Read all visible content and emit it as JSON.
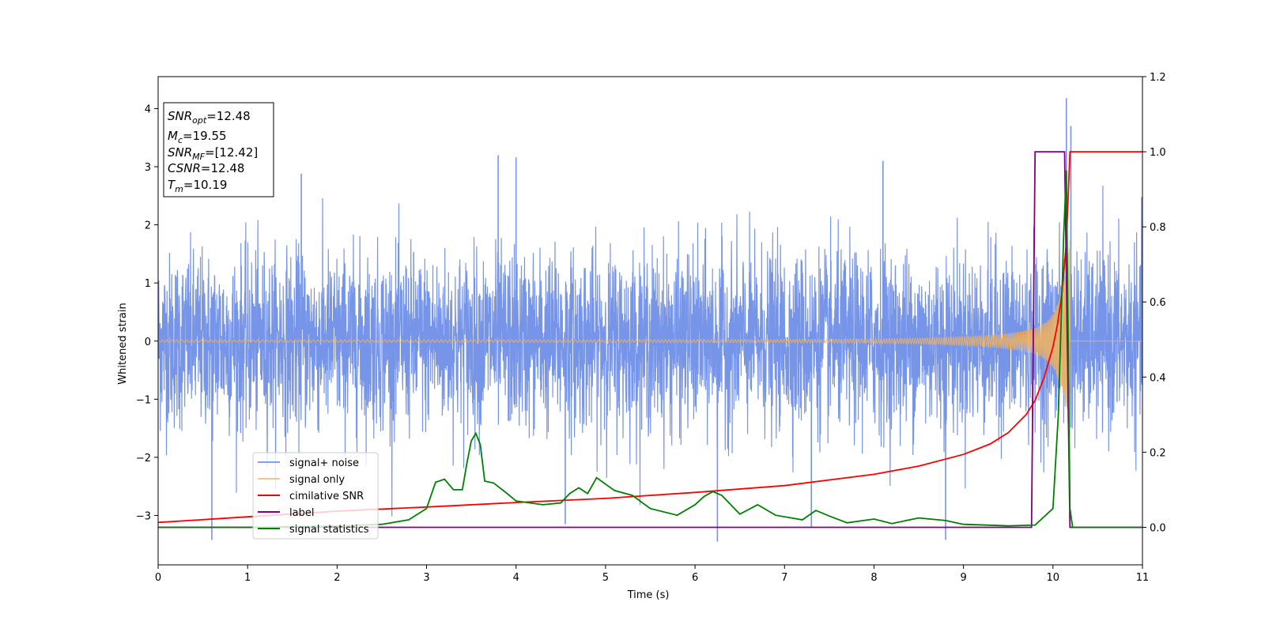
{
  "chart_data": {
    "type": "line",
    "xlabel": "Time (s)",
    "ylabel_left": "Whitened strain",
    "ylabel_right": "",
    "xlim": [
      0,
      11
    ],
    "ylim_left": [
      -3.85,
      4.55
    ],
    "ylim_right": [
      -0.1,
      1.2
    ],
    "x_ticks": [
      0,
      1,
      2,
      3,
      4,
      5,
      6,
      7,
      8,
      9,
      10,
      11
    ],
    "y_ticks_left": [
      -3,
      -2,
      -1,
      0,
      1,
      2,
      3,
      4
    ],
    "y_ticks_right": [
      0.0,
      0.2,
      0.4,
      0.6,
      0.8,
      1.0,
      1.2
    ],
    "grid": false,
    "legend_position": "lower-left",
    "info_box": {
      "lines": [
        {
          "base": "SNR",
          "sub": "opt",
          "value": "=12.48"
        },
        {
          "base": "M",
          "sub": "c",
          "value": "=19.55"
        },
        {
          "base": "SNR",
          "sub": "MF",
          "value": "=[12.42]"
        },
        {
          "base": "CSNR",
          "sub": "",
          "value": "=12.48"
        },
        {
          "base": "T",
          "sub": "m",
          "value": "=10.19"
        }
      ]
    },
    "series": [
      {
        "name": "signal+ noise",
        "axis": "left",
        "color": "#7795e8",
        "kind": "noise",
        "sigma": 0.75,
        "envelope_max": 3.2,
        "spikes": [
          {
            "x": 0.6,
            "y": -3.42
          },
          {
            "x": 1.6,
            "y": 2.88
          },
          {
            "x": 3.8,
            "y": 3.2
          },
          {
            "x": 4.0,
            "y": 3.16
          },
          {
            "x": 4.55,
            "y": -3.15
          },
          {
            "x": 6.25,
            "y": -3.45
          },
          {
            "x": 7.3,
            "y": -3.2
          },
          {
            "x": 8.1,
            "y": 3.1
          },
          {
            "x": 8.8,
            "y": -3.42
          },
          {
            "x": 10.15,
            "y": 4.18
          },
          {
            "x": 10.2,
            "y": 3.7
          }
        ]
      },
      {
        "name": "signal only",
        "axis": "left",
        "color": "#f5b35c",
        "kind": "chirp",
        "t_merge": 10.19
      },
      {
        "name": "cimilative SNR",
        "axis": "right",
        "color": "#ff0000",
        "kind": "line",
        "points": [
          [
            0,
            0.013
          ],
          [
            1,
            0.028
          ],
          [
            2,
            0.043
          ],
          [
            3,
            0.054
          ],
          [
            4,
            0.066
          ],
          [
            5,
            0.077
          ],
          [
            6,
            0.093
          ],
          [
            7,
            0.111
          ],
          [
            8,
            0.141
          ],
          [
            8.5,
            0.163
          ],
          [
            9,
            0.194
          ],
          [
            9.3,
            0.222
          ],
          [
            9.5,
            0.252
          ],
          [
            9.7,
            0.3
          ],
          [
            9.8,
            0.338
          ],
          [
            9.9,
            0.398
          ],
          [
            10.0,
            0.48
          ],
          [
            10.05,
            0.54
          ],
          [
            10.1,
            0.62
          ],
          [
            10.15,
            0.76
          ],
          [
            10.19,
            1.0
          ],
          [
            11,
            1.0
          ]
        ]
      },
      {
        "name": "label",
        "axis": "right",
        "color": "#800080",
        "kind": "line",
        "points": [
          [
            0,
            0
          ],
          [
            9.76,
            0
          ],
          [
            9.8,
            1.0
          ],
          [
            10.13,
            1.0
          ],
          [
            10.19,
            0
          ],
          [
            11,
            0
          ]
        ]
      },
      {
        "name": "signal statistics",
        "axis": "right",
        "color": "#008000",
        "kind": "line",
        "points": [
          [
            0,
            0.0
          ],
          [
            1,
            0.0
          ],
          [
            2,
            0.003
          ],
          [
            2.5,
            0.008
          ],
          [
            2.8,
            0.02
          ],
          [
            3.0,
            0.05
          ],
          [
            3.1,
            0.12
          ],
          [
            3.2,
            0.128
          ],
          [
            3.3,
            0.1
          ],
          [
            3.4,
            0.1
          ],
          [
            3.45,
            0.17
          ],
          [
            3.5,
            0.23
          ],
          [
            3.55,
            0.25
          ],
          [
            3.6,
            0.22
          ],
          [
            3.65,
            0.123
          ],
          [
            3.75,
            0.118
          ],
          [
            3.9,
            0.09
          ],
          [
            4.0,
            0.07
          ],
          [
            4.3,
            0.06
          ],
          [
            4.5,
            0.065
          ],
          [
            4.6,
            0.09
          ],
          [
            4.7,
            0.105
          ],
          [
            4.8,
            0.09
          ],
          [
            4.9,
            0.132
          ],
          [
            5.0,
            0.115
          ],
          [
            5.1,
            0.098
          ],
          [
            5.3,
            0.085
          ],
          [
            5.5,
            0.05
          ],
          [
            5.8,
            0.032
          ],
          [
            6.0,
            0.06
          ],
          [
            6.1,
            0.082
          ],
          [
            6.2,
            0.095
          ],
          [
            6.3,
            0.085
          ],
          [
            6.5,
            0.035
          ],
          [
            6.7,
            0.06
          ],
          [
            6.9,
            0.032
          ],
          [
            7.2,
            0.02
          ],
          [
            7.35,
            0.045
          ],
          [
            7.5,
            0.03
          ],
          [
            7.7,
            0.012
          ],
          [
            8.0,
            0.022
          ],
          [
            8.2,
            0.01
          ],
          [
            8.5,
            0.025
          ],
          [
            8.8,
            0.018
          ],
          [
            9.0,
            0.008
          ],
          [
            9.5,
            0.004
          ],
          [
            9.8,
            0.006
          ],
          [
            10.0,
            0.05
          ],
          [
            10.06,
            0.3
          ],
          [
            10.12,
            0.78
          ],
          [
            10.15,
            0.95
          ],
          [
            10.19,
            0.05
          ],
          [
            10.22,
            0.0
          ],
          [
            11,
            0.0
          ]
        ]
      }
    ]
  }
}
